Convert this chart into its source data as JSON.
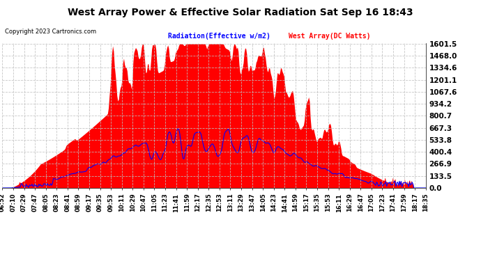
{
  "title": "West Array Power & Effective Solar Radiation Sat Sep 16 18:43",
  "copyright": "Copyright 2023 Cartronics.com",
  "legend_radiation": "Radiation(Effective w/m2)",
  "legend_westarray": "West Array(DC Watts)",
  "ylabel_values": [
    0.0,
    133.5,
    266.9,
    400.4,
    533.8,
    667.3,
    800.7,
    934.2,
    1067.6,
    1201.1,
    1334.6,
    1468.0,
    1601.5
  ],
  "ymax": 1601.5,
  "ymin": 0.0,
  "radiation_color": "#FF0000",
  "westarray_color": "#0000FF",
  "background_color": "#FFFFFF",
  "grid_color": "#C0C0C0",
  "title_color": "#000000",
  "copyright_color": "#000000",
  "legend_radiation_color": "#0000FF",
  "legend_westarray_color": "#FF0000",
  "xtick_labels": [
    "06:52",
    "07:10",
    "07:29",
    "07:47",
    "08:05",
    "08:23",
    "08:41",
    "08:59",
    "09:17",
    "09:35",
    "09:53",
    "10:11",
    "10:29",
    "10:47",
    "11:05",
    "11:23",
    "11:41",
    "11:59",
    "12:17",
    "12:35",
    "12:53",
    "13:11",
    "13:29",
    "13:47",
    "14:05",
    "14:23",
    "14:41",
    "14:59",
    "15:17",
    "15:35",
    "15:53",
    "16:11",
    "16:29",
    "16:47",
    "17:05",
    "17:23",
    "17:41",
    "17:59",
    "18:17",
    "18:35"
  ],
  "n_points": 500,
  "peak_radiation": 1601.5,
  "peak_westarray": 800.0
}
